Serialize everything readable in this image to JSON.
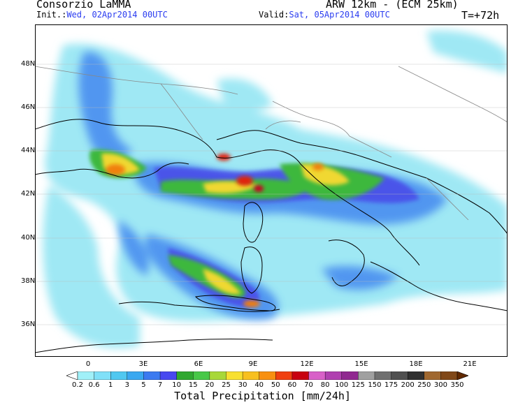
{
  "header": {
    "org": "Consorzio LaMMA",
    "model": "ARW 12km - (ECM 25km)",
    "init_label": "Init.:",
    "init_value": "Wed, 02Apr2014 00UTC",
    "valid_label": "Valid:",
    "valid_value": "Sat, 05Apr2014 00UTC",
    "forecast_hour": "T=+72h"
  },
  "map": {
    "lat_labels": [
      "48N",
      "46N",
      "44N",
      "42N",
      "40N",
      "38N",
      "36N"
    ],
    "lon_labels": [
      "0",
      "3E",
      "6E",
      "9E",
      "12E",
      "15E",
      "18E",
      "21E"
    ]
  },
  "colorbar": {
    "title": "Total Precipitation [mm/24h]",
    "labels": [
      "0.2",
      "0.6",
      "1",
      "3",
      "5",
      "7",
      "10",
      "15",
      "20",
      "25",
      "30",
      "40",
      "50",
      "60",
      "70",
      "80",
      "100",
      "125",
      "150",
      "175",
      "200",
      "250",
      "300",
      "350"
    ],
    "colors": [
      "#a0f0f8",
      "#80e0f8",
      "#50c8f0",
      "#3aa8f0",
      "#3c7af0",
      "#4848f0",
      "#30a830",
      "#48c848",
      "#a8d838",
      "#f8e030",
      "#f8c020",
      "#f89010",
      "#f04010",
      "#c80010",
      "#d860c8",
      "#b040b0",
      "#902890",
      "#a0a0a0",
      "#707070",
      "#505050",
      "#303030",
      "#a06830",
      "#804818",
      "#602800"
    ]
  },
  "colors": {
    "land": "#ffffff",
    "sea_rain_light": "#9fe8f4",
    "accent_blue": "#2a3cf0"
  }
}
